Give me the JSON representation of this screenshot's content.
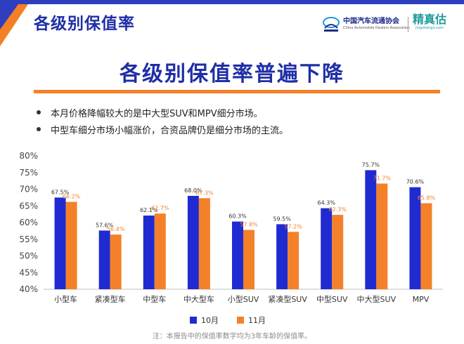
{
  "header": {
    "title": "各级别保值率",
    "logo_cada_cn": "中国汽车流通协会",
    "logo_cada_en": "China Automobile Dealers Association",
    "logo_jzg_cn": "精真估",
    "logo_jzg_url": "jingzhengu.com"
  },
  "main_title": "各级别保值率普遍下降",
  "bullets": [
    "本月价格降幅较大的是中大型SUV和MPV细分市场。",
    "中型车细分市场小幅涨价，合资品牌仍是细分市场的主流。"
  ],
  "colors": {
    "series1": "#1f2bd1",
    "series2": "#f4812a",
    "title": "#1f2fa6",
    "accent_line": "#f47f25",
    "label_series2": "#f4812a"
  },
  "chart_data": {
    "type": "bar",
    "categories": [
      "小型车",
      "紧凑型车",
      "中型车",
      "中大型车",
      "小型SUV",
      "紧凑型SUV",
      "中型SUV",
      "中大型SUV",
      "MPV"
    ],
    "series": [
      {
        "name": "10月",
        "values": [
          67.5,
          57.6,
          62.1,
          68.0,
          60.3,
          59.5,
          64.3,
          75.7,
          70.6
        ],
        "labels": [
          "67.5%",
          "57.6%",
          "62.1%",
          "68.0%",
          "60.3%",
          "59.5%",
          "64.3%",
          "75.7%",
          "70.6%"
        ]
      },
      {
        "name": "11月",
        "values": [
          66.2,
          56.4,
          62.7,
          67.3,
          57.8,
          57.2,
          62.3,
          71.7,
          65.8
        ],
        "labels": [
          "66.2%",
          "56.4%",
          "62.7%",
          "67.3%",
          "57.8%",
          "57.2%",
          "62.3%",
          "71.7%",
          "65.8%"
        ]
      }
    ],
    "ylim": [
      40,
      80
    ],
    "yticks": [
      "40%",
      "45%",
      "50%",
      "55%",
      "60%",
      "65%",
      "70%",
      "75%",
      "80%"
    ],
    "grid": false,
    "legend_position": "bottom"
  },
  "note": "注：本报告中的保值率数字均为3年车龄的保值率。"
}
